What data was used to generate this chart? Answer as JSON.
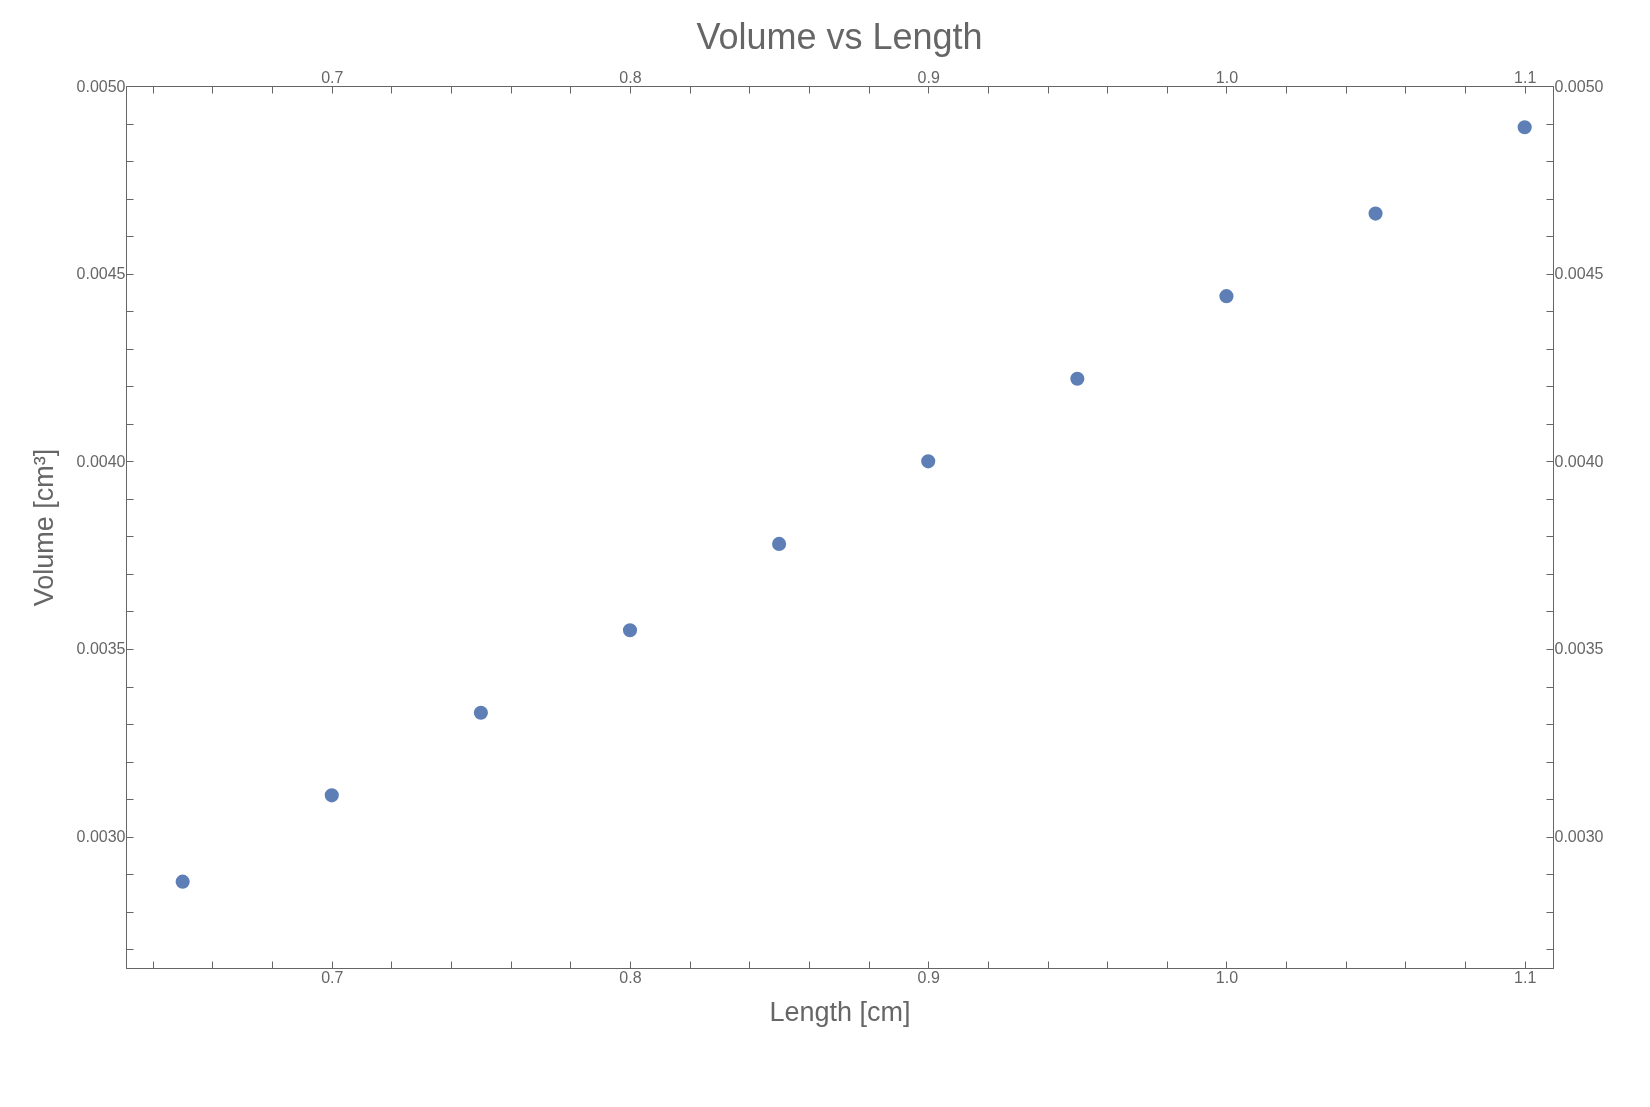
{
  "chart_data": {
    "type": "scatter",
    "title": "Volume vs Length",
    "xlabel": "Length [cm]",
    "ylabel": "Volume [cm³]",
    "x": [
      0.65,
      0.7,
      0.75,
      0.8,
      0.85,
      0.9,
      0.95,
      1.0,
      1.05,
      1.1
    ],
    "series": [
      {
        "color": "#5d7fb6",
        "values": [
          0.00288,
          0.00311,
          0.00333,
          0.00355,
          0.00378,
          0.004,
          0.00422,
          0.00444,
          0.00466,
          0.00489
        ]
      }
    ],
    "marker": "circle",
    "grid": false,
    "legend": false,
    "xlim": [
      0.631,
      1.1095
    ],
    "ylim": [
      0.00265,
      0.005
    ],
    "xticks": [
      {
        "value": 0.64,
        "label": null
      },
      {
        "value": 0.66,
        "label": null
      },
      {
        "value": 0.68,
        "label": null
      },
      0.7,
      {
        "value": 0.72,
        "label": null
      },
      {
        "value": 0.74,
        "label": null
      },
      {
        "value": 0.76,
        "label": null
      },
      {
        "value": 0.78,
        "label": null
      },
      0.8,
      {
        "value": 0.82,
        "label": null
      },
      {
        "value": 0.84,
        "label": null
      },
      {
        "value": 0.86,
        "label": null
      },
      {
        "value": 0.88,
        "label": null
      },
      0.9,
      {
        "value": 0.92,
        "label": null
      },
      {
        "value": 0.94,
        "label": null
      },
      {
        "value": 0.96,
        "label": null
      },
      {
        "value": 0.98,
        "label": null
      },
      {
        "value": 1.0,
        "label": "1.0"
      },
      {
        "value": 1.02,
        "label": null
      },
      {
        "value": 1.04,
        "label": null
      },
      {
        "value": 1.06,
        "label": null
      },
      {
        "value": 1.08,
        "label": null
      },
      1.1
    ],
    "x2lim": [
      0.631,
      1.1095
    ],
    "x2ticks": [
      {
        "value": 0.64,
        "label": null
      },
      {
        "value": 0.66,
        "label": null
      },
      {
        "value": 0.68,
        "label": null
      },
      0.7,
      {
        "value": 0.72,
        "label": null
      },
      {
        "value": 0.74,
        "label": null
      },
      {
        "value": 0.76,
        "label": null
      },
      {
        "value": 0.78,
        "label": null
      },
      0.8,
      {
        "value": 0.82,
        "label": null
      },
      {
        "value": 0.84,
        "label": null
      },
      {
        "value": 0.86,
        "label": null
      },
      {
        "value": 0.88,
        "label": null
      },
      0.9,
      {
        "value": 0.92,
        "label": null
      },
      {
        "value": 0.94,
        "label": null
      },
      {
        "value": 0.96,
        "label": null
      },
      {
        "value": 0.98,
        "label": null
      },
      {
        "value": 1.0,
        "label": "1.0"
      },
      {
        "value": 1.02,
        "label": null
      },
      {
        "value": 1.04,
        "label": null
      },
      {
        "value": 1.06,
        "label": null
      },
      {
        "value": 1.08,
        "label": null
      },
      1.1
    ],
    "yticks": [
      {
        "value": 0.0027,
        "label": null
      },
      {
        "value": 0.0028,
        "label": null
      },
      {
        "value": 0.0029,
        "label": null
      },
      {
        "value": 0.003,
        "label": "0.0030"
      },
      {
        "value": 0.0031,
        "label": null
      },
      {
        "value": 0.0032,
        "label": null
      },
      {
        "value": 0.0033,
        "label": null
      },
      {
        "value": 0.0034,
        "label": null
      },
      {
        "value": 0.0035,
        "label": "0.0035"
      },
      {
        "value": 0.0036,
        "label": null
      },
      {
        "value": 0.0037,
        "label": null
      },
      {
        "value": 0.0038,
        "label": null
      },
      {
        "value": 0.0039,
        "label": null
      },
      {
        "value": 0.004,
        "label": "0.0040"
      },
      {
        "value": 0.0041,
        "label": null
      },
      {
        "value": 0.0042,
        "label": null
      },
      {
        "value": 0.0043,
        "label": null
      },
      {
        "value": 0.0044,
        "label": null
      },
      {
        "value": 0.0045,
        "label": "0.0045"
      },
      {
        "value": 0.0046,
        "label": null
      },
      {
        "value": 0.0047,
        "label": null
      },
      {
        "value": 0.0048,
        "label": null
      },
      {
        "value": 0.0049,
        "label": null
      },
      {
        "value": 0.005,
        "label": "0.0050"
      }
    ],
    "y2lim": [
      0.00265,
      0.005
    ],
    "y2ticks": [
      {
        "value": 0.0027,
        "label": null
      },
      {
        "value": 0.0028,
        "label": null
      },
      {
        "value": 0.0029,
        "label": null
      },
      {
        "value": 0.003,
        "label": "0.0030"
      },
      {
        "value": 0.0031,
        "label": null
      },
      {
        "value": 0.0032,
        "label": null
      },
      {
        "value": 0.0033,
        "label": null
      },
      {
        "value": 0.0034,
        "label": null
      },
      {
        "value": 0.0035,
        "label": "0.0035"
      },
      {
        "value": 0.0036,
        "label": null
      },
      {
        "value": 0.0037,
        "label": null
      },
      {
        "value": 0.0038,
        "label": null
      },
      {
        "value": 0.0039,
        "label": null
      },
      {
        "value": 0.004,
        "label": "0.0040"
      },
      {
        "value": 0.0041,
        "label": null
      },
      {
        "value": 0.0042,
        "label": null
      },
      {
        "value": 0.0043,
        "label": null
      },
      {
        "value": 0.0044,
        "label": null
      },
      {
        "value": 0.0045,
        "label": "0.0045"
      },
      {
        "value": 0.0046,
        "label": null
      },
      {
        "value": 0.0047,
        "label": null
      },
      {
        "value": 0.0048,
        "label": null
      },
      {
        "value": 0.0049,
        "label": null
      },
      {
        "value": 0.005,
        "label": "0.0050"
      }
    ]
  }
}
